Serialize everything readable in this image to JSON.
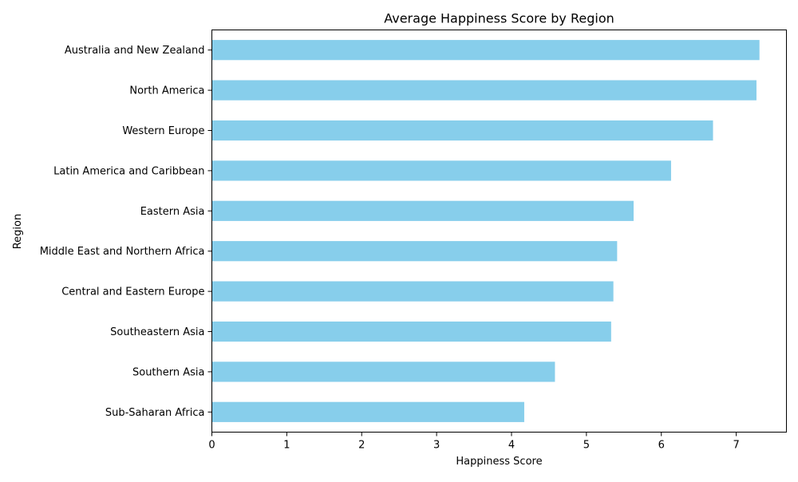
{
  "chart_data": {
    "type": "bar",
    "orientation": "horizontal",
    "title": "Average Happiness Score by Region",
    "xlabel": "Happiness Score",
    "ylabel": "Region",
    "xlim": [
      0,
      7.67
    ],
    "xticks": [
      0,
      1,
      2,
      3,
      4,
      5,
      6,
      7
    ],
    "grid": false,
    "legend": "none",
    "bar_color": "#87CEEB",
    "categories": [
      "Australia and New Zealand",
      "North America",
      "Western Europe",
      "Latin America and Caribbean",
      "Eastern Asia",
      "Middle East and Northern Africa",
      "Central and Eastern Europe",
      "Southeastern Asia",
      "Southern Asia",
      "Sub-Saharan Africa"
    ],
    "values": [
      7.31,
      7.27,
      6.69,
      6.13,
      5.63,
      5.41,
      5.36,
      5.33,
      4.58,
      4.17
    ]
  }
}
